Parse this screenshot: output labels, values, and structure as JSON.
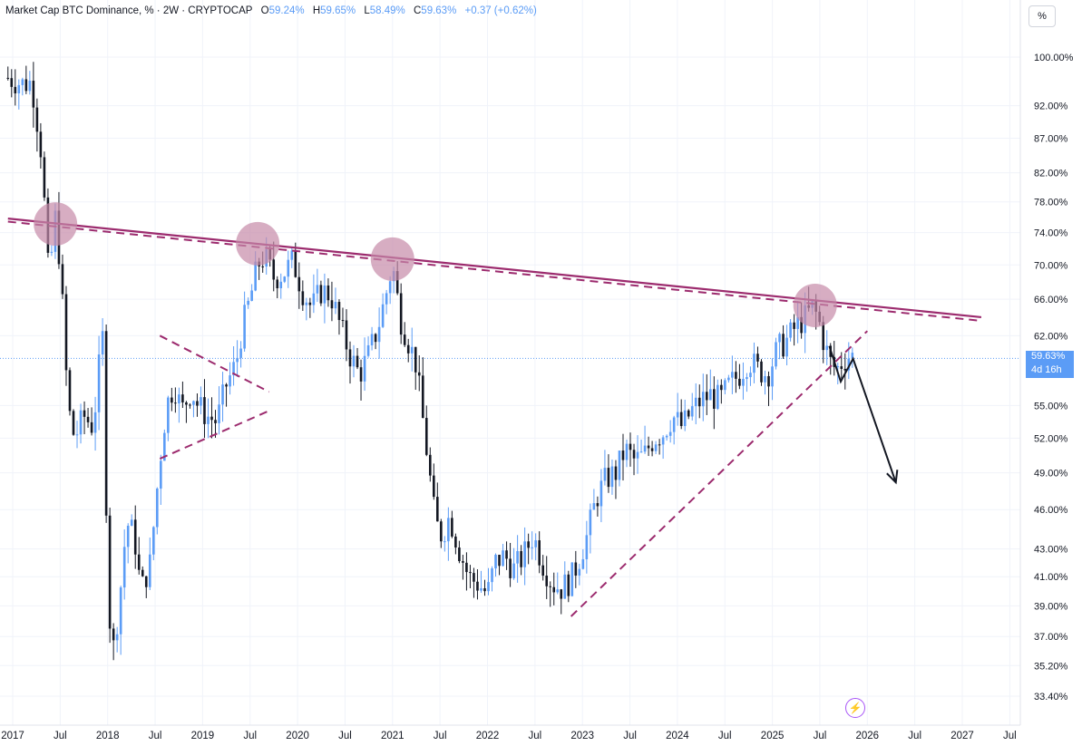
{
  "header": {
    "symbol": "Market Cap BTC Dominance, % · 2W · CRYPTOCAP",
    "o_key": "O",
    "o_val": "59.24%",
    "h_key": "H",
    "h_val": "59.65%",
    "l_key": "L",
    "l_val": "58.49%",
    "c_key": "C",
    "c_val": "59.63%",
    "change": "+0.37 (+0.62%)"
  },
  "toolbar": {
    "percent_label": "%"
  },
  "price_label": {
    "value": "59.63%",
    "countdown": "4d 16h"
  },
  "colors": {
    "up": "#5b9cf6",
    "down": "#131722",
    "trendline": "#9c2b6e",
    "circle": "#c68aa8",
    "accent": "#a855f7"
  },
  "icons": [
    "lightning-icon"
  ],
  "chart_data": {
    "type": "candlestick",
    "title": "",
    "y_scale": "log",
    "ylim": [
      32.5,
      103
    ],
    "y_ticks": [
      {
        "value": 100,
        "label": "100.00%"
      },
      {
        "value": 92,
        "label": "92.00%"
      },
      {
        "value": 87,
        "label": "87.00%"
      },
      {
        "value": 82,
        "label": "82.00%"
      },
      {
        "value": 78,
        "label": "78.00%"
      },
      {
        "value": 74,
        "label": "74.00%"
      },
      {
        "value": 70,
        "label": "70.00%"
      },
      {
        "value": 66,
        "label": "66.00%"
      },
      {
        "value": 62,
        "label": "62.00%"
      },
      {
        "value": 55,
        "label": "55.00%"
      },
      {
        "value": 52,
        "label": "52.00%"
      },
      {
        "value": 49,
        "label": "49.00%"
      },
      {
        "value": 46,
        "label": "46.00%"
      },
      {
        "value": 43,
        "label": "43.00%"
      },
      {
        "value": 41,
        "label": "41.00%"
      },
      {
        "value": 39,
        "label": "39.00%"
      },
      {
        "value": 37,
        "label": "37.00%"
      },
      {
        "value": 35.2,
        "label": "35.20%"
      },
      {
        "value": 33.4,
        "label": "33.40%"
      }
    ],
    "xlim": [
      2017.0,
      2027.7
    ],
    "x_ticks": [
      {
        "value": 2017.0,
        "label": "2017"
      },
      {
        "value": 2017.5,
        "label": "Jul"
      },
      {
        "value": 2018.0,
        "label": "2018"
      },
      {
        "value": 2018.5,
        "label": "Jul"
      },
      {
        "value": 2019.0,
        "label": "2019"
      },
      {
        "value": 2019.5,
        "label": "Jul"
      },
      {
        "value": 2020.0,
        "label": "2020"
      },
      {
        "value": 2020.5,
        "label": "Jul"
      },
      {
        "value": 2021.0,
        "label": "2021"
      },
      {
        "value": 2021.5,
        "label": "Jul"
      },
      {
        "value": 2022.0,
        "label": "2022"
      },
      {
        "value": 2022.5,
        "label": "Jul"
      },
      {
        "value": 2023.0,
        "label": "2023"
      },
      {
        "value": 2023.5,
        "label": "Jul"
      },
      {
        "value": 2024.0,
        "label": "2024"
      },
      {
        "value": 2024.5,
        "label": "Jul"
      },
      {
        "value": 2025.0,
        "label": "2025"
      },
      {
        "value": 2025.5,
        "label": "Jul"
      },
      {
        "value": 2026.0,
        "label": "2026"
      },
      {
        "value": 2026.5,
        "label": "Jul"
      },
      {
        "value": 2027.0,
        "label": "2027"
      },
      {
        "value": 2027.5,
        "label": "Jul"
      }
    ],
    "current_price": 59.63,
    "price_path": [
      [
        2016.95,
        96.5
      ],
      [
        2017.1,
        95.5
      ],
      [
        2017.2,
        95.8
      ],
      [
        2017.3,
        85
      ],
      [
        2017.38,
        68
      ],
      [
        2017.45,
        76
      ],
      [
        2017.5,
        70
      ],
      [
        2017.58,
        55
      ],
      [
        2017.65,
        52
      ],
      [
        2017.75,
        54
      ],
      [
        2017.85,
        53
      ],
      [
        2017.9,
        58
      ],
      [
        2017.95,
        62
      ],
      [
        2018.0,
        40
      ],
      [
        2018.05,
        35.8
      ],
      [
        2018.12,
        39
      ],
      [
        2018.2,
        45
      ],
      [
        2018.28,
        44
      ],
      [
        2018.35,
        40
      ],
      [
        2018.45,
        42
      ],
      [
        2018.55,
        50
      ],
      [
        2018.62,
        55
      ],
      [
        2018.7,
        57
      ],
      [
        2018.78,
        54.5
      ],
      [
        2018.88,
        56.5
      ],
      [
        2018.95,
        55
      ],
      [
        2019.05,
        54
      ],
      [
        2019.15,
        53.5
      ],
      [
        2019.25,
        57
      ],
      [
        2019.35,
        59
      ],
      [
        2019.42,
        63
      ],
      [
        2019.5,
        66
      ],
      [
        2019.58,
        70
      ],
      [
        2019.65,
        71
      ],
      [
        2019.75,
        68.5
      ],
      [
        2019.85,
        69
      ],
      [
        2019.95,
        70.5
      ],
      [
        2020.05,
        67
      ],
      [
        2020.15,
        65
      ],
      [
        2020.25,
        67
      ],
      [
        2020.35,
        66.5
      ],
      [
        2020.45,
        63
      ],
      [
        2020.55,
        60
      ],
      [
        2020.65,
        58
      ],
      [
        2020.75,
        60
      ],
      [
        2020.85,
        63
      ],
      [
        2020.92,
        66
      ],
      [
        2021.0,
        70
      ],
      [
        2021.08,
        64
      ],
      [
        2021.18,
        61
      ],
      [
        2021.25,
        59
      ],
      [
        2021.3,
        55
      ],
      [
        2021.38,
        49.5
      ],
      [
        2021.45,
        45
      ],
      [
        2021.52,
        44
      ],
      [
        2021.6,
        45.5
      ],
      [
        2021.7,
        43
      ],
      [
        2021.8,
        41
      ],
      [
        2021.9,
        40.5
      ],
      [
        2022.0,
        39.8
      ],
      [
        2022.08,
        42
      ],
      [
        2022.18,
        42.5
      ],
      [
        2022.28,
        41.5
      ],
      [
        2022.38,
        42.5
      ],
      [
        2022.48,
        44
      ],
      [
        2022.58,
        42
      ],
      [
        2022.68,
        40.5
      ],
      [
        2022.78,
        40.2
      ],
      [
        2022.88,
        40.8
      ],
      [
        2022.95,
        42
      ],
      [
        2023.05,
        44
      ],
      [
        2023.15,
        47
      ],
      [
        2023.25,
        48.5
      ],
      [
        2023.35,
        49
      ],
      [
        2023.45,
        51
      ],
      [
        2023.55,
        50
      ],
      [
        2023.65,
        50.5
      ],
      [
        2023.75,
        52
      ],
      [
        2023.85,
        52.5
      ],
      [
        2023.95,
        54
      ],
      [
        2024.05,
        53
      ],
      [
        2024.15,
        54.5
      ],
      [
        2024.25,
        55.5
      ],
      [
        2024.35,
        56
      ],
      [
        2024.45,
        55.5
      ],
      [
        2024.55,
        57
      ],
      [
        2024.65,
        58
      ],
      [
        2024.75,
        59.5
      ],
      [
        2024.85,
        58.5
      ],
      [
        2024.95,
        58
      ],
      [
        2025.05,
        60.5
      ],
      [
        2025.15,
        61.5
      ],
      [
        2025.25,
        63
      ],
      [
        2025.35,
        64
      ],
      [
        2025.42,
        65
      ],
      [
        2025.48,
        64
      ],
      [
        2025.55,
        61
      ],
      [
        2025.62,
        59
      ],
      [
        2025.68,
        58.5
      ],
      [
        2025.75,
        59.5
      ],
      [
        2025.82,
        60
      ],
      [
        2025.88,
        59.6
      ]
    ],
    "annotations": [
      {
        "kind": "trendline",
        "style": "solid",
        "points": [
          [
            2016.95,
            75.8
          ],
          [
            2027.2,
            64.0
          ]
        ]
      },
      {
        "kind": "trendline",
        "style": "dashed",
        "points": [
          [
            2016.95,
            75.4
          ],
          [
            2027.2,
            63.6
          ]
        ]
      },
      {
        "kind": "trendline",
        "style": "dashed",
        "points": [
          [
            2022.88,
            38.3
          ],
          [
            2026.0,
            62.5
          ]
        ]
      },
      {
        "kind": "trendline",
        "style": "dashed",
        "points": [
          [
            2018.55,
            62.0
          ],
          [
            2019.7,
            56.3
          ]
        ]
      },
      {
        "kind": "trendline",
        "style": "dashed",
        "points": [
          [
            2018.55,
            50.2
          ],
          [
            2019.7,
            54.5
          ]
        ]
      },
      {
        "kind": "circle",
        "at": [
          2017.45,
          75.1
        ]
      },
      {
        "kind": "circle",
        "at": [
          2019.58,
          72.6
        ]
      },
      {
        "kind": "circle",
        "at": [
          2021.0,
          70.7
        ]
      },
      {
        "kind": "circle",
        "at": [
          2025.45,
          65.3
        ]
      },
      {
        "kind": "arrow",
        "points": [
          [
            2025.6,
            60.9
          ],
          [
            2025.72,
            57.3
          ],
          [
            2025.85,
            59.6
          ],
          [
            2026.3,
            48.2
          ]
        ]
      }
    ]
  }
}
